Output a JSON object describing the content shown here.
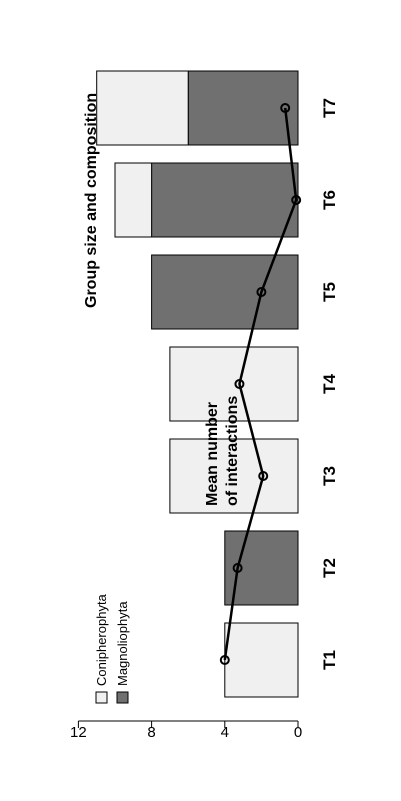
{
  "chart_data": {
    "type": "bar",
    "stacked": true,
    "orientation": "rotated-90",
    "title": "Group size and composition",
    "categories": [
      "T1",
      "T2",
      "T3",
      "T4",
      "T5",
      "T6",
      "T7"
    ],
    "series": [
      {
        "name": "Magnoliophyta",
        "color": "#707070",
        "values": [
          0,
          4,
          0,
          0,
          8,
          8,
          6
        ]
      },
      {
        "name": "Conipherophyta",
        "color": "#f0f0f0",
        "values": [
          4,
          0,
          7,
          7,
          0,
          2,
          5
        ]
      }
    ],
    "line": {
      "label_lines": [
        "Mean number",
        "of interactions"
      ],
      "values": [
        4.0,
        3.3,
        1.9,
        3.2,
        2.0,
        0.1,
        0.7
      ]
    },
    "ylim": [
      0,
      12
    ],
    "yticks": [
      "0",
      "4",
      "8",
      "12"
    ],
    "grid": false,
    "legend_position": "top-left"
  }
}
